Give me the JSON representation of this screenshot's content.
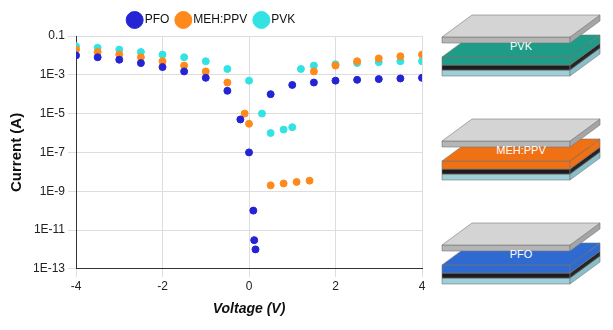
{
  "chart_data": {
    "type": "scatter",
    "x_label": "Voltage (V)",
    "y_label": "Current (A)",
    "log": "y",
    "grid": true,
    "legend": "top",
    "marker": "circle",
    "xlim": [
      -4,
      4
    ],
    "xticks": [
      -4,
      -2,
      0,
      2,
      4
    ],
    "ylim": [
      1e-13,
      0.1
    ],
    "yticks": [
      {
        "value": 1e-13,
        "label": "1E-13"
      },
      {
        "value": 1e-11,
        "label": "1E-11"
      },
      {
        "value": 1e-09,
        "label": "1E-9"
      },
      {
        "value": 1e-07,
        "label": "1E-7"
      },
      {
        "value": 1e-05,
        "label": "1E-5"
      },
      {
        "value": 0.001,
        "label": "1E-3"
      },
      0.1
    ],
    "series": [
      {
        "name": "PFO",
        "color": "#2424d4",
        "x": [
          -4,
          -3.5,
          -3,
          -2.5,
          -2,
          -1.5,
          -1,
          -0.5,
          -0.2,
          0,
          0.1,
          0.12,
          0.15,
          0.5,
          1,
          1.5,
          2,
          2.5,
          3,
          3.5,
          4
        ],
        "values": [
          0.01,
          0.008,
          0.006,
          0.004,
          0.0025,
          0.0015,
          0.0007,
          0.00015,
          5e-06,
          1e-07,
          1e-10,
          3e-12,
          1e-12,
          0.0001,
          0.0003,
          0.0004,
          0.0005,
          0.00055,
          0.0006,
          0.00065,
          0.0007
        ]
      },
      {
        "name": "MEH:PPV",
        "color": "#ff8a1c",
        "x": [
          -4,
          -3.5,
          -3,
          -2.5,
          -2,
          -1.5,
          -1,
          -0.5,
          -0.1,
          0,
          0.5,
          0.8,
          1.1,
          1.4,
          1.5,
          2,
          2.5,
          3,
          3.5,
          4
        ],
        "values": [
          0.02,
          0.015,
          0.011,
          0.008,
          0.005,
          0.003,
          0.0015,
          0.0004,
          1e-05,
          3e-06,
          2e-09,
          2.5e-09,
          3e-09,
          3.5e-09,
          0.0015,
          0.003,
          0.005,
          0.007,
          0.009,
          0.011
        ]
      },
      {
        "name": "PVK",
        "color": "#33e3e3",
        "x": [
          -4,
          -3.5,
          -3,
          -2.5,
          -2,
          -1.5,
          -1,
          -0.5,
          0,
          0.3,
          0.5,
          0.8,
          1,
          1.2,
          1.5,
          2,
          2.5,
          3,
          3.5,
          4
        ],
        "values": [
          0.03,
          0.025,
          0.02,
          0.015,
          0.011,
          0.008,
          0.005,
          0.002,
          0.0005,
          1e-05,
          1e-06,
          1.5e-06,
          2e-06,
          0.002,
          0.003,
          0.0035,
          0.004,
          0.0045,
          0.005,
          0.005
        ]
      }
    ]
  },
  "device_stacks": [
    {
      "label": "PVK",
      "color": "#1f9c87"
    },
    {
      "label": "MEH:PPV",
      "color": "#f07014"
    },
    {
      "label": "PFO",
      "color": "#2f6ad0"
    }
  ]
}
